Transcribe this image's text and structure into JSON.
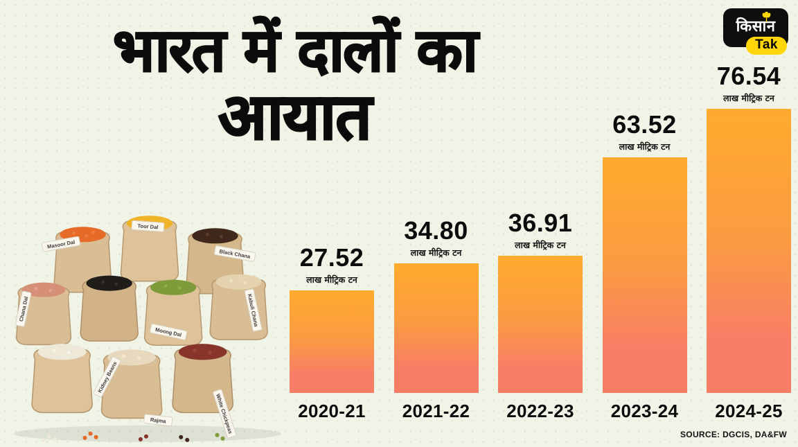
{
  "page": {
    "bg": "#f0f4e7",
    "dot_color": "#d9e0cd"
  },
  "title": {
    "line1": "भारत में दालों का",
    "line2": "आयात"
  },
  "logo": {
    "hindi": "किसान",
    "latin": "Tak",
    "bg": "#0e0e0e",
    "accent": "#FFD60A",
    "wheat_icon": "wheat"
  },
  "chart_data": {
    "type": "bar",
    "title": "भारत में दालों का आयात",
    "unit_label": "लाख मीट्रिक टन",
    "categories": [
      "2020-21",
      "2021-22",
      "2022-23",
      "2023-24",
      "2024-25"
    ],
    "values": [
      27.52,
      34.8,
      36.91,
      63.52,
      76.54
    ],
    "value_labels": [
      "27.52",
      "34.80",
      "36.91",
      "63.52",
      "76.54"
    ],
    "ylim": [
      0,
      80
    ],
    "grid": false,
    "legend": "none",
    "bar_color_top": "#ffab2e",
    "bar_color_mid": "#fb9a43",
    "bar_color_bottom": "#f87d67"
  },
  "source_text": "SOURCE: DGCIS, DA&FW",
  "pulses": {
    "labels": {
      "masoor": "Masoor Dal",
      "toor": "Toor Dal",
      "black_chana": "Black Chana",
      "chana_dal": "Chana Dal",
      "kabuli": "Kabuli Chana",
      "moong": "Moong Dal",
      "kidney": "Kidney Beans",
      "rajma": "Rajma",
      "white_chickpeas": "White Chickpeas"
    }
  }
}
